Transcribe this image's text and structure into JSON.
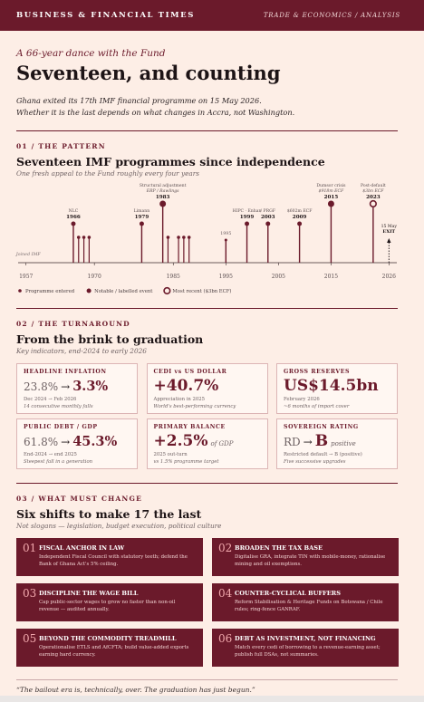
{
  "masthead": {
    "left": "BUSINESS & FINANCIAL TIMES",
    "right": "TRADE & ECONOMICS / ANALYSIS"
  },
  "hero": {
    "kicker": "A 66-year dance with the Fund",
    "title": "Seventeen, and counting",
    "deck": [
      "Ghana exited its 17th IMF financial programme on 15 May 2026.",
      "Whether it is the last depends on what changes in Accra, not Washington."
    ]
  },
  "pattern": {
    "section": "01 / THE PATTERN",
    "title": "Seventeen IMF programmes since independence",
    "subtitle": "One fresh appeal to the Fund roughly every four years",
    "chart": {
      "type": "timeline",
      "color": "#6b1a2b",
      "xlim": [
        1955.5,
        2027.5
      ],
      "xticks": [
        1957,
        1970,
        1985,
        1995,
        2005,
        2015,
        2026
      ],
      "start": {
        "year": 1957,
        "label": "Joined IMF"
      },
      "programmes": [
        1967,
        1968,
        1969,
        1984,
        1986,
        1987,
        1988
      ],
      "events": [
        {
          "year": 1966,
          "kind": "labelled",
          "caption": [
            "NLC"
          ]
        },
        {
          "year": 1979,
          "kind": "labelled",
          "caption": [
            "Limann"
          ]
        },
        {
          "year": 1983,
          "kind": "notable",
          "caption": [
            "Structural adjustment",
            "ERP / Rawlings"
          ]
        },
        {
          "year": 1995,
          "kind": "minor",
          "caption": []
        },
        {
          "year": 1999,
          "kind": "labelled",
          "caption": [
            "HIPC · Enhan"
          ]
        },
        {
          "year": 2003,
          "kind": "labelled",
          "caption": [
            "/ PRGF"
          ]
        },
        {
          "year": 2009,
          "kind": "labelled",
          "caption": [
            "$602m ECF"
          ]
        },
        {
          "year": 2015,
          "kind": "notable",
          "caption": [
            "Dumsor crisis",
            "$918m ECF"
          ]
        },
        {
          "year": 2023,
          "kind": "recent",
          "caption": [
            "Post-default",
            "$3bn ECF"
          ]
        }
      ],
      "exit": {
        "year": 2026,
        "caption": [
          "15 May",
          "EXIT"
        ]
      },
      "legend": [
        {
          "kind": "programme",
          "label": "Programme entered"
        },
        {
          "kind": "notable",
          "label": "Notable / labelled event"
        },
        {
          "kind": "recent",
          "label": "Most recent ($3bn ECF)"
        }
      ]
    }
  },
  "turnaround": {
    "section": "02 / THE TURNAROUND",
    "title": "From the brink to graduation",
    "subtitle": "Key indicators, end-2024 to early 2026",
    "cards": [
      {
        "label": "HEADLINE INFLATION",
        "figure": [
          {
            "text": "23.8%",
            "style": "from"
          },
          {
            "text": "→",
            "style": "arrow"
          },
          {
            "text": "3.3%",
            "style": "main"
          }
        ],
        "notes": [
          "Dec 2024 → Feb 2026",
          "14 consecutive monthly falls"
        ]
      },
      {
        "label": "CEDI vs US DOLLAR",
        "figure": [
          {
            "text": "+40.7%",
            "style": "big"
          }
        ],
        "notes": [
          "Appreciation in 2025",
          "World's best-performing currency"
        ]
      },
      {
        "label": "GROSS RESERVES",
        "figure": [
          {
            "text": "US$14.5bn",
            "style": "big"
          }
        ],
        "notes": [
          "February 2026",
          "~6 months of import cover"
        ]
      },
      {
        "label": "PUBLIC DEBT / GDP",
        "figure": [
          {
            "text": "61.8%",
            "style": "from"
          },
          {
            "text": "→",
            "style": "arrow"
          },
          {
            "text": "45.3%",
            "style": "main"
          }
        ],
        "notes": [
          "End-2024 → end 2025",
          "Steepest fall in a generation"
        ]
      },
      {
        "label": "PRIMARY BALANCE",
        "figure": [
          {
            "text": "+2.5%",
            "style": "big"
          },
          {
            "text": "of GDP",
            "style": "unit"
          }
        ],
        "notes": [
          "2025 out-turn",
          "vs 1.5% programme target"
        ]
      },
      {
        "label": "SOVEREIGN RATING",
        "figure": [
          {
            "text": "RD",
            "style": "from"
          },
          {
            "text": "→",
            "style": "arrow"
          },
          {
            "text": "B",
            "style": "big"
          },
          {
            "text": "positive",
            "style": "unit"
          }
        ],
        "notes": [
          "Restricted default → B (positive)",
          "Five successive upgrades"
        ]
      }
    ]
  },
  "change": {
    "section": "03 / WHAT MUST CHANGE",
    "title": "Six shifts to make 17 the last",
    "subtitle": "Not slogans — legislation, budget execution, political culture",
    "shifts": [
      {
        "number": "01",
        "title": "FISCAL ANCHOR IN LAW",
        "body": "Independent Fiscal Council with statutory teeth; defend the Bank of Ghana Act's 5% ceiling."
      },
      {
        "number": "02",
        "title": "BROADEN THE TAX BASE",
        "body": "Digitalise GRA, integrate TIN with mobile-money, rationalise mining and oil exemptions."
      },
      {
        "number": "03",
        "title": "DISCIPLINE THE WAGE BILL",
        "body": "Cap public-sector wages to grow no faster than non-oil revenue — audited annually."
      },
      {
        "number": "04",
        "title": "COUNTER-CYCLICAL BUFFERS",
        "body": "Reform Stabilisation & Heritage Funds on Botswana / Chile rules; ring-fence GANRAF."
      },
      {
        "number": "05",
        "title": "BEYOND THE COMMODITY TREADMILL",
        "body": "Operationalise ETLS and AfCFTA; build value-added exports earning hard currency."
      },
      {
        "number": "06",
        "title": "DEBT AS INVESTMENT, NOT FINANCING",
        "body": "Match every cedi of borrowing to a revenue-earning asset; publish full DSAs, not summaries."
      }
    ]
  },
  "footer": {
    "quote": "“The bailout era is, technically, over. The graduation has just begun.”"
  }
}
